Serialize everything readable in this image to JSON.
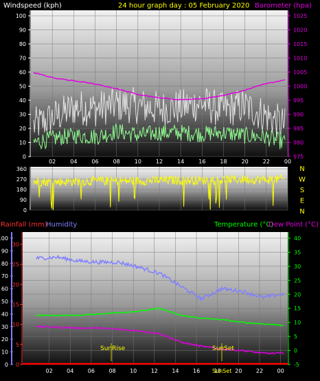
{
  "top_chart": {
    "title": "24 hour graph day : 05 February 2020",
    "left_label": "Windspeed (kph)",
    "right_label": "Barometer (hpa)",
    "left_ticks": [
      "0",
      "10",
      "20",
      "30",
      "40",
      "50",
      "60",
      "70",
      "80",
      "90",
      "100"
    ],
    "right_ticks": [
      "975",
      "980",
      "985",
      "990",
      "995",
      "1000",
      "1005",
      "1010",
      "1015",
      "1020",
      "1025"
    ],
    "x_ticks": [
      "02",
      "04",
      "06",
      "08",
      "10",
      "12",
      "14",
      "16",
      "18",
      "20",
      "22",
      "00"
    ]
  },
  "dir_chart": {
    "left_ticks": [
      "0",
      "90",
      "180",
      "270",
      "360"
    ],
    "compass": [
      "N",
      "W",
      "S",
      "E",
      "N"
    ]
  },
  "bottom_chart": {
    "left_label_1": "Rainfall (mm)",
    "left_label_2": "Humidity",
    "right_label_1": "Temperature (°C)",
    "right_label_2": "Dew Point (°C)",
    "humidity_ticks": [
      "0",
      "10",
      "20",
      "30",
      "40",
      "50",
      "60",
      "70",
      "80",
      "90",
      "100"
    ],
    "rain_ticks": [
      "0",
      "5",
      "10",
      "15",
      "20",
      "25",
      "30"
    ],
    "right_ticks": [
      "-5",
      "0",
      "5",
      "10",
      "15",
      "20",
      "25",
      "30",
      "35",
      "40"
    ],
    "x_ticks": [
      "02",
      "04",
      "06",
      "08",
      "10",
      "12",
      "14",
      "16",
      "18",
      "20",
      "22",
      "00"
    ],
    "sunrise": "SunRise",
    "sunset": "SunSet",
    "solar_noon": "SunSet"
  },
  "chart_data": [
    {
      "type": "line",
      "xlabel": "",
      "ylabel": "Windspeed (kph)",
      "ylim": [
        0,
        100
      ],
      "y2label": "Barometer (hpa)",
      "y2lim": [
        975,
        1025
      ],
      "x": [
        "00",
        "02",
        "04",
        "06",
        "08",
        "10",
        "12",
        "14",
        "16",
        "18",
        "20",
        "22",
        "00"
      ],
      "series": [
        {
          "name": "Windspeed (kph)",
          "color": "#f0f0f0",
          "values": [
            22,
            28,
            35,
            34,
            37,
            36,
            34,
            35,
            38,
            33,
            36,
            30,
            22
          ]
        },
        {
          "name": "Barometer (hpa)",
          "axis": "right",
          "color": "#e000e0",
          "values": [
            1004.8,
            1002.8,
            1001.8,
            1000.7,
            999.0,
            997.0,
            995.8,
            995.2,
            995.5,
            996.5,
            998.4,
            1000.8,
            1002.2
          ]
        },
        {
          "color": "#90ff90",
          "values": [
            10,
            13,
            15,
            14,
            18,
            15,
            17,
            17,
            16,
            17,
            15,
            14,
            10
          ]
        }
      ]
    },
    {
      "type": "line",
      "ylim": [
        0,
        360
      ],
      "x": [
        "00",
        "02",
        "04",
        "06",
        "08",
        "10",
        "12",
        "14",
        "16",
        "18",
        "20",
        "22",
        "00"
      ],
      "series": [
        {
          "color": "#ffff00",
          "values": [
            250,
            245,
            250,
            255,
            255,
            255,
            260,
            260,
            260,
            265,
            270,
            265,
            270
          ]
        }
      ]
    },
    {
      "type": "line",
      "x": [
        "00",
        "02",
        "04",
        "06",
        "08",
        "10",
        "12",
        "14",
        "16",
        "18",
        "20",
        "22",
        "00"
      ],
      "ylim": [
        0,
        100
      ],
      "y2lim": [
        -5,
        40
      ],
      "series": [
        {
          "name": "Humidity",
          "color": "#8080ff",
          "values": [
            84,
            85,
            82,
            81,
            81,
            77,
            72,
            62,
            52,
            60,
            58,
            53,
            56
          ]
        },
        {
          "name": "Temperature (°C)",
          "axis": "right",
          "color": "#00ff00",
          "values": [
            12.5,
            12.5,
            12.5,
            13.0,
            13.5,
            14.0,
            15.0,
            12.5,
            11.5,
            11.0,
            10.0,
            9.5,
            9.0
          ]
        },
        {
          "name": "Dew Point (°C)",
          "axis": "right",
          "color": "#e000e0",
          "values": [
            8.5,
            8.3,
            8.0,
            8.0,
            7.5,
            7.0,
            6.0,
            3.0,
            1.5,
            0.5,
            0.0,
            -1.0,
            -1.0
          ]
        },
        {
          "name": "Rainfall (mm)",
          "axis": "rain",
          "color": "#ff0000",
          "values": [
            0,
            0,
            0,
            0,
            0,
            0,
            0,
            0,
            0,
            0,
            0,
            0,
            0
          ]
        }
      ]
    }
  ]
}
